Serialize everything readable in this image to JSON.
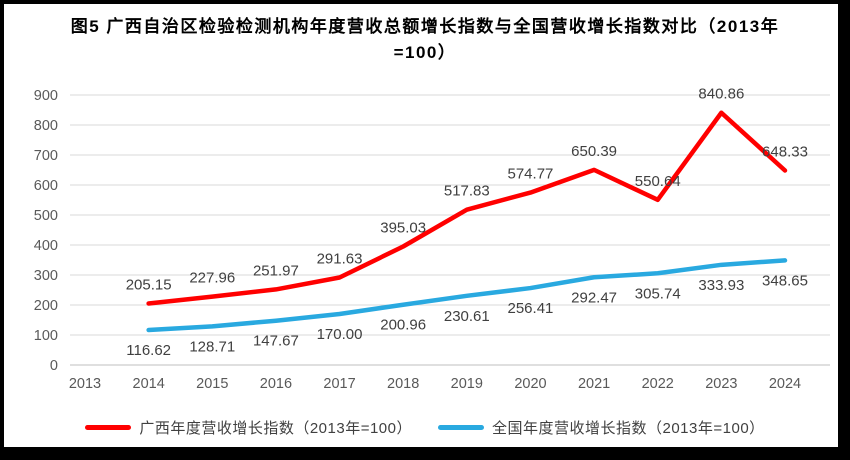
{
  "chart_data": {
    "type": "line",
    "title": "图5 广西自治区检验检测机构年度营收总额增长指数与全国营收增长指数对比（2013年=100）",
    "categories": [
      "2013",
      "2014",
      "2015",
      "2016",
      "2017",
      "2018",
      "2019",
      "2020",
      "2021",
      "2022",
      "2023",
      "2024"
    ],
    "series": [
      {
        "name": "广西年度营收增长指数（2013年=100）",
        "color": "#FF0000",
        "values": [
          null,
          205.15,
          227.96,
          251.97,
          291.63,
          395.03,
          517.83,
          574.77,
          650.39,
          550.64,
          840.86,
          648.33
        ],
        "labels": [
          null,
          "205.15",
          "227.96",
          "251.97",
          "291.63",
          "395.03",
          "517.83",
          "574.77",
          "650.39",
          "550.64",
          "840.86",
          "648.33"
        ],
        "label_position": "above"
      },
      {
        "name": "全国年度营收增长指数（2013年=100）",
        "color": "#29A9E0",
        "values": [
          null,
          116.62,
          128.71,
          147.67,
          170.0,
          200.96,
          230.61,
          256.41,
          292.47,
          305.74,
          333.93,
          348.65
        ],
        "labels": [
          null,
          "116.62",
          "128.71",
          "147.67",
          "170.00",
          "200.96",
          "230.61",
          "256.41",
          "292.47",
          "305.74",
          "333.93",
          "348.65"
        ],
        "label_position": "below"
      }
    ],
    "ylim": [
      0,
      900
    ],
    "ytick_interval": 100,
    "grid": true,
    "legend_position": "bottom",
    "colors": {
      "gridline": "#D9D9D9",
      "axis_line": "#BFBFBF",
      "tick_label": "#595959",
      "data_label": "#404040",
      "title": "#000000",
      "background": "#FFFFFF",
      "frame_border": "#000000"
    }
  }
}
